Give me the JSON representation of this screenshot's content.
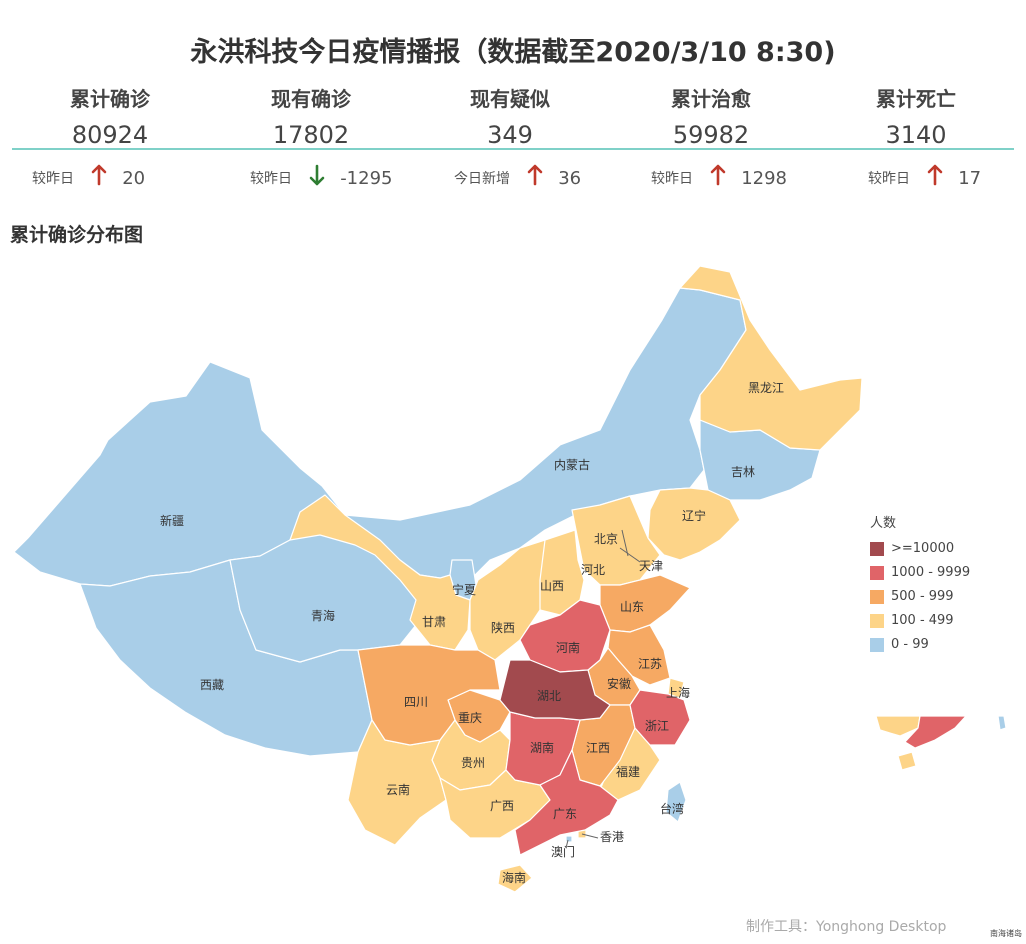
{
  "header": {
    "title": "永洪科技今日疫情播报（数据截至2020/3/10 8:30)"
  },
  "stats": [
    {
      "label": "累计确诊",
      "value": "80924",
      "delta_label": "较昨日",
      "direction": "up",
      "delta": "20"
    },
    {
      "label": "现有确诊",
      "value": "17802",
      "delta_label": "较昨日",
      "direction": "down",
      "delta": "-1295"
    },
    {
      "label": "现有疑似",
      "value": "349",
      "delta_label": "今日新增",
      "direction": "up",
      "delta": "36"
    },
    {
      "label": "累计治愈",
      "value": "59982",
      "delta_label": "较昨日",
      "direction": "up",
      "delta": "1298"
    },
    {
      "label": "累计死亡",
      "value": "3140",
      "delta_label": "较昨日",
      "direction": "up",
      "delta": "17"
    }
  ],
  "colors": {
    "up": "#c0392b",
    "down": "#2e7d32",
    "divider": "#7fd1c8"
  },
  "map_section": {
    "title": "累计确诊分布图"
  },
  "legend": {
    "title": "人数",
    "items": [
      {
        "label": ">=10000",
        "color": "#a24a4e"
      },
      {
        "label": "1000 - 9999",
        "color": "#e06468"
      },
      {
        "label": "500 - 999",
        "color": "#f6a963"
      },
      {
        "label": "100 - 499",
        "color": "#fdd488"
      },
      {
        "label": "0 - 99",
        "color": "#a9cee8"
      }
    ]
  },
  "chart_data": {
    "type": "choropleth-map",
    "title": "累计确诊分布图",
    "legend_placement": "right",
    "regions": [
      {
        "name": "新疆",
        "bucket": "0 - 99"
      },
      {
        "name": "西藏",
        "bucket": "0 - 99"
      },
      {
        "name": "青海",
        "bucket": "0 - 99"
      },
      {
        "name": "内蒙古",
        "bucket": "0 - 99"
      },
      {
        "name": "吉林",
        "bucket": "0 - 99"
      },
      {
        "name": "宁夏",
        "bucket": "0 - 99"
      },
      {
        "name": "台湾",
        "bucket": "0 - 99"
      },
      {
        "name": "澳门",
        "bucket": "0 - 99"
      },
      {
        "name": "黑龙江",
        "bucket": "100 - 499"
      },
      {
        "name": "辽宁",
        "bucket": "100 - 499"
      },
      {
        "name": "北京",
        "bucket": "100 - 499"
      },
      {
        "name": "天津",
        "bucket": "100 - 499"
      },
      {
        "name": "河北",
        "bucket": "100 - 499"
      },
      {
        "name": "山西",
        "bucket": "100 - 499"
      },
      {
        "name": "陕西",
        "bucket": "100 - 499"
      },
      {
        "name": "甘肃",
        "bucket": "100 - 499"
      },
      {
        "name": "上海",
        "bucket": "100 - 499"
      },
      {
        "name": "福建",
        "bucket": "100 - 499"
      },
      {
        "name": "贵州",
        "bucket": "100 - 499"
      },
      {
        "name": "云南",
        "bucket": "100 - 499"
      },
      {
        "name": "广西",
        "bucket": "100 - 499"
      },
      {
        "name": "海南",
        "bucket": "100 - 499"
      },
      {
        "name": "香港",
        "bucket": "100 - 499"
      },
      {
        "name": "重庆",
        "bucket": "500 - 999"
      },
      {
        "name": "四川",
        "bucket": "500 - 999"
      },
      {
        "name": "山东",
        "bucket": "500 - 999"
      },
      {
        "name": "江苏",
        "bucket": "500 - 999"
      },
      {
        "name": "安徽",
        "bucket": "500 - 999"
      },
      {
        "name": "江西",
        "bucket": "500 - 999"
      },
      {
        "name": "河南",
        "bucket": "1000 - 9999"
      },
      {
        "name": "湖南",
        "bucket": "1000 - 9999"
      },
      {
        "name": "浙江",
        "bucket": "1000 - 9999"
      },
      {
        "name": "广东",
        "bucket": "1000 - 9999"
      },
      {
        "name": "湖北",
        "bucket": ">=10000"
      }
    ]
  },
  "footer": {
    "credit": "制作工具：Yonghong Desktop",
    "inset_label": "南海诸岛"
  }
}
